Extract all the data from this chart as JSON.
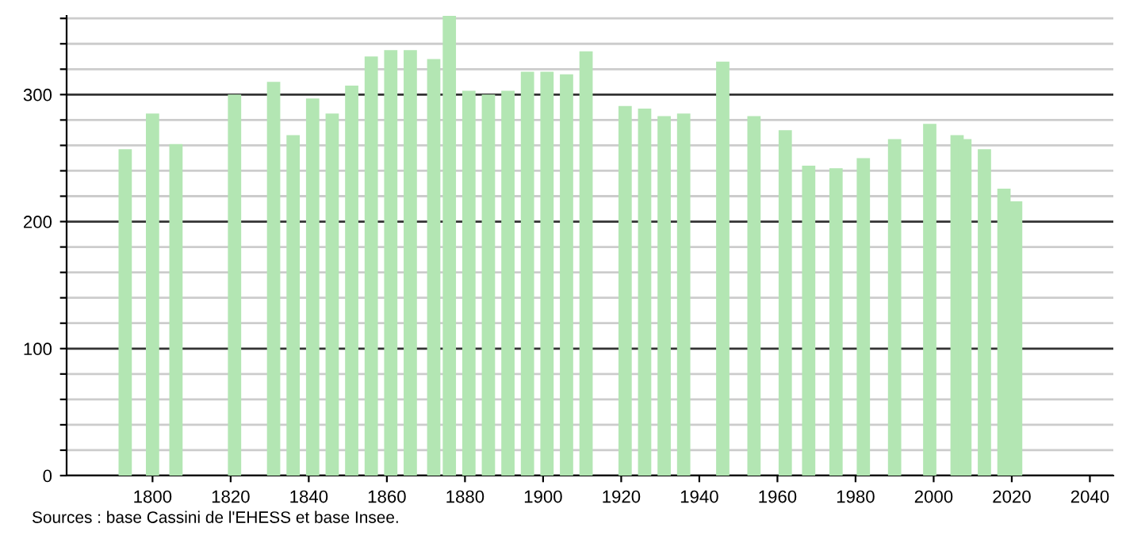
{
  "chart_data": {
    "type": "bar",
    "color": "#b3e6b3",
    "x": [
      1793,
      1800,
      1806,
      1821,
      1831,
      1836,
      1841,
      1846,
      1851,
      1856,
      1861,
      1866,
      1872,
      1876,
      1881,
      1886,
      1891,
      1896,
      1901,
      1906,
      1911,
      1921,
      1926,
      1931,
      1936,
      1946,
      1954,
      1962,
      1968,
      1975,
      1982,
      1990,
      1999,
      2006,
      2008,
      2013,
      2018,
      2021
    ],
    "values": [
      257,
      285,
      261,
      300,
      310,
      268,
      297,
      285,
      307,
      330,
      335,
      335,
      328,
      362,
      303,
      300,
      303,
      318,
      318,
      316,
      334,
      291,
      289,
      283,
      285,
      326,
      283,
      272,
      244,
      242,
      250,
      265,
      277,
      268,
      265,
      257,
      226,
      216
    ],
    "xlim": [
      1778,
      2046
    ],
    "xticks": [
      1800,
      1820,
      1840,
      1860,
      1880,
      1900,
      1920,
      1940,
      1960,
      1980,
      2000,
      2020,
      2040
    ],
    "ylim": [
      0,
      362
    ],
    "yticks": [
      0,
      {
        "value": 20,
        "label": null
      },
      {
        "value": 40,
        "label": null
      },
      {
        "value": 60,
        "label": null
      },
      {
        "value": 80,
        "label": null
      },
      100,
      {
        "value": 120,
        "label": null
      },
      {
        "value": 140,
        "label": null
      },
      {
        "value": 160,
        "label": null
      },
      {
        "value": 180,
        "label": null
      },
      200,
      {
        "value": 220,
        "label": null
      },
      {
        "value": 240,
        "label": null
      },
      {
        "value": 260,
        "label": null
      },
      {
        "value": 280,
        "label": null
      },
      300,
      {
        "value": 320,
        "label": null
      },
      {
        "value": 340,
        "label": null
      },
      {
        "value": 360,
        "label": null
      }
    ],
    "grid": "y",
    "annotations": [
      "Sources : base Cassini de l'EHESS et base Insee."
    ]
  }
}
